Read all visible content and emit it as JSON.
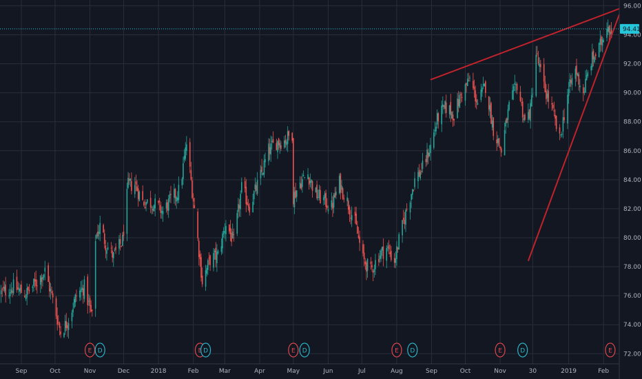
{
  "colors": {
    "background": "#131722",
    "grid": "#2a2e39",
    "up_candle": "#26a69a",
    "down_candle": "#ef5350",
    "trendline": "#c0232c",
    "price_line": "#26c6da",
    "axis_text": "#b2b5be",
    "earnings_marker": "#e0474c",
    "dividend_marker": "#2bb5c8"
  },
  "current_price_label": "94.41",
  "chart_data": {
    "type": "candlestick",
    "title": "",
    "xlabel": "",
    "ylabel": "",
    "ylim": [
      71.3,
      96.4
    ],
    "grid": true,
    "y_ticks": [
      "72.00",
      "74.00",
      "76.00",
      "78.00",
      "80.00",
      "82.00",
      "84.00",
      "86.00",
      "88.00",
      "90.00",
      "92.00",
      "94.00",
      "96.00"
    ],
    "x_ticks": [
      "Sep",
      "Oct",
      "Nov",
      "Dec",
      "2018",
      "Feb",
      "Mar",
      "Apr",
      "May",
      "Jun",
      "Jul",
      "Aug",
      "Sep",
      "Oct",
      "Nov",
      "30",
      "2019",
      "Feb"
    ],
    "x_range": [
      "2017-08-13",
      "2019-02-15"
    ],
    "tick_dates": [
      "2017-09-01",
      "2017-10-01",
      "2017-11-01",
      "2017-12-01",
      "2018-01-01",
      "2018-02-01",
      "2018-03-01",
      "2018-04-01",
      "2018-05-01",
      "2018-06-01",
      "2018-07-01",
      "2018-08-01",
      "2018-09-01",
      "2018-10-01",
      "2018-11-01",
      "2018-11-30",
      "2019-01-01",
      "2019-02-01"
    ],
    "price_path": [
      [
        "2017-08-14",
        76.2
      ],
      [
        "2017-08-25",
        76.6
      ],
      [
        "2017-09-05",
        76.1
      ],
      [
        "2017-09-15",
        77.0
      ],
      [
        "2017-09-22",
        77.7
      ],
      [
        "2017-09-28",
        76.0
      ],
      [
        "2017-10-06",
        73.5
      ],
      [
        "2017-10-12",
        74.2
      ],
      [
        "2017-10-20",
        76.0
      ],
      [
        "2017-10-27",
        76.6
      ],
      [
        "2017-11-03",
        74.5
      ],
      [
        "2017-11-06",
        80.0
      ],
      [
        "2017-11-10",
        80.8
      ],
      [
        "2017-11-15",
        79.6
      ],
      [
        "2017-11-22",
        78.7
      ],
      [
        "2017-11-30",
        79.8
      ],
      [
        "2017-12-05",
        83.6
      ],
      [
        "2017-12-11",
        83.7
      ],
      [
        "2017-12-18",
        82.5
      ],
      [
        "2017-12-27",
        82.4
      ],
      [
        "2018-01-05",
        81.8
      ],
      [
        "2018-01-12",
        82.6
      ],
      [
        "2018-01-20",
        83.3
      ],
      [
        "2018-01-26",
        86.5
      ],
      [
        "2018-02-02",
        82.0
      ],
      [
        "2018-02-09",
        77.0
      ],
      [
        "2018-02-16",
        78.5
      ],
      [
        "2018-02-23",
        78.8
      ],
      [
        "2018-03-02",
        81.0
      ],
      [
        "2018-03-09",
        79.7
      ],
      [
        "2018-03-16",
        83.4
      ],
      [
        "2018-03-23",
        82.2
      ],
      [
        "2018-04-01",
        84.0
      ],
      [
        "2018-04-09",
        86.0
      ],
      [
        "2018-04-16",
        86.6
      ],
      [
        "2018-04-23",
        86.7
      ],
      [
        "2018-04-30",
        87.2
      ],
      [
        "2018-05-01",
        82.8
      ],
      [
        "2018-05-07",
        83.8
      ],
      [
        "2018-05-14",
        84.4
      ],
      [
        "2018-05-21",
        83.0
      ],
      [
        "2018-05-28",
        82.6
      ],
      [
        "2018-06-04",
        82.1
      ],
      [
        "2018-06-11",
        83.8
      ],
      [
        "2018-06-18",
        82.5
      ],
      [
        "2018-06-25",
        81.0
      ],
      [
        "2018-07-02",
        78.5
      ],
      [
        "2018-07-09",
        77.7
      ],
      [
        "2018-07-16",
        78.8
      ],
      [
        "2018-07-23",
        79.3
      ],
      [
        "2018-07-30",
        78.4
      ],
      [
        "2018-08-03",
        79.8
      ],
      [
        "2018-08-10",
        82.0
      ],
      [
        "2018-08-17",
        84.0
      ],
      [
        "2018-08-24",
        84.8
      ],
      [
        "2018-08-31",
        86.3
      ],
      [
        "2018-09-07",
        88.4
      ],
      [
        "2018-09-14",
        89.0
      ],
      [
        "2018-09-21",
        88.5
      ],
      [
        "2018-09-28",
        90.0
      ],
      [
        "2018-10-05",
        90.9
      ],
      [
        "2018-10-12",
        89.3
      ],
      [
        "2018-10-19",
        90.5
      ],
      [
        "2018-10-26",
        87.5
      ],
      [
        "2018-11-02",
        86.0
      ],
      [
        "2018-11-09",
        89.0
      ],
      [
        "2018-11-16",
        90.6
      ],
      [
        "2018-11-23",
        88.0
      ],
      [
        "2018-11-28",
        88.8
      ],
      [
        "2018-12-03",
        92.7
      ],
      [
        "2018-12-10",
        90.4
      ],
      [
        "2018-12-17",
        88.9
      ],
      [
        "2018-12-24",
        86.7
      ],
      [
        "2018-12-31",
        89.9
      ],
      [
        "2019-01-07",
        91.6
      ],
      [
        "2019-01-14",
        90.0
      ],
      [
        "2019-01-21",
        92.2
      ],
      [
        "2019-01-28",
        93.0
      ],
      [
        "2019-02-04",
        94.8
      ],
      [
        "2019-02-08",
        94.3
      ]
    ],
    "trendlines": [
      {
        "start": [
          "2018-08-31",
          90.9
        ],
        "end": [
          "2019-02-15",
          95.8
        ]
      },
      {
        "start": [
          "2018-11-26",
          78.4
        ],
        "end": [
          "2019-02-15",
          95.4
        ]
      }
    ],
    "price_line_value": 94.41,
    "events": [
      {
        "type": "E",
        "date": "2017-11-01"
      },
      {
        "type": "D",
        "date": "2017-11-10"
      },
      {
        "type": "E",
        "date": "2018-02-07"
      },
      {
        "type": "D",
        "date": "2018-02-12"
      },
      {
        "type": "E",
        "date": "2018-05-01"
      },
      {
        "type": "D",
        "date": "2018-05-11"
      },
      {
        "type": "E",
        "date": "2018-08-01"
      },
      {
        "type": "D",
        "date": "2018-08-15"
      },
      {
        "type": "E",
        "date": "2018-11-01"
      },
      {
        "type": "D",
        "date": "2018-11-21"
      },
      {
        "type": "E",
        "date": "2019-02-07"
      }
    ]
  }
}
